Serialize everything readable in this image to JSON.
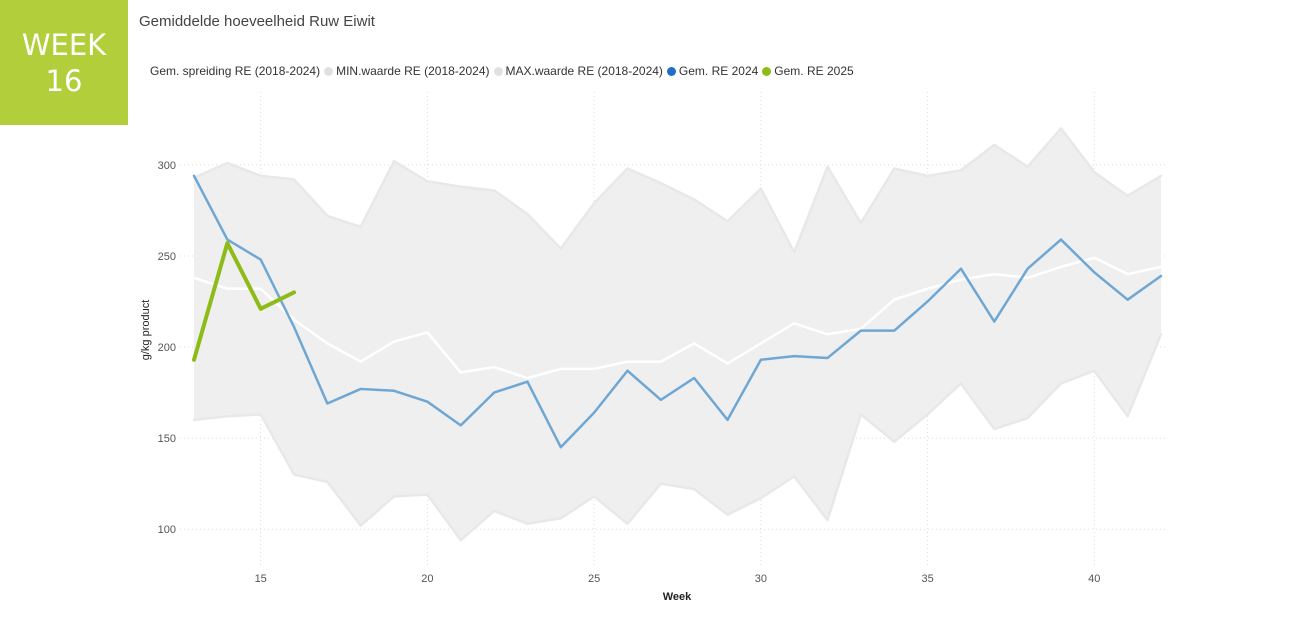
{
  "badge": {
    "line1": "WEEK",
    "line2": "16",
    "color": "#b2cf3b"
  },
  "chart_data": {
    "type": "line",
    "title": "Gemiddelde hoeveelheid Ruw Eiwit",
    "xlabel": "Week",
    "ylabel": "g/kg product",
    "xlim": [
      13,
      42
    ],
    "ylim": [
      82,
      340
    ],
    "xticks": [
      15,
      20,
      25,
      30,
      35,
      40
    ],
    "yticks": [
      100,
      150,
      200,
      250,
      300
    ],
    "grid": true,
    "legend_position": "top-left",
    "legend": [
      {
        "label": "Gem. spreiding RE (2018-2024)",
        "color": null
      },
      {
        "label": "MIN.waarde RE (2018-2024)",
        "color": "#e0e0e0"
      },
      {
        "label": "MAX.waarde RE (2018-2024)",
        "color": "#e0e0e0"
      },
      {
        "label": "Gem. RE 2024",
        "color": "#1f6fc5"
      },
      {
        "label": "Gem. RE 2025",
        "color": "#8dbb17"
      }
    ],
    "x": [
      13,
      14,
      15,
      16,
      17,
      18,
      19,
      20,
      21,
      22,
      23,
      24,
      25,
      26,
      27,
      28,
      29,
      30,
      31,
      32,
      33,
      34,
      35,
      36,
      37,
      38,
      39,
      40,
      41,
      42
    ],
    "series": [
      {
        "name": "MIN.waarde RE (2018-2024)",
        "color": "#e8e8e8",
        "values": [
          160,
          162,
          163,
          130,
          126,
          102,
          118,
          119,
          94,
          110,
          103,
          106,
          118,
          103,
          125,
          122,
          108,
          117,
          129,
          105,
          163,
          148,
          163,
          180,
          155,
          161,
          180,
          187,
          162,
          207
        ]
      },
      {
        "name": "MAX.waarde RE (2018-2024)",
        "color": "#e8e8e8",
        "values": [
          293,
          301,
          294,
          292,
          272,
          266,
          302,
          291,
          288,
          286,
          273,
          254,
          279,
          298,
          290,
          281,
          269,
          287,
          252,
          299,
          268,
          298,
          294,
          297,
          311,
          299,
          320,
          296,
          283,
          294
        ]
      },
      {
        "name": "Gem. spreiding RE (2018-2024)",
        "color": "#ffffff",
        "values": [
          238,
          232,
          232,
          215,
          202,
          192,
          203,
          208,
          186,
          189,
          183,
          188,
          188,
          192,
          192,
          202,
          191,
          202,
          213,
          207,
          210,
          226,
          232,
          237,
          240,
          238,
          244,
          249,
          240,
          244
        ]
      },
      {
        "name": "Gem. RE 2024",
        "color": "#6fa7d4",
        "values": [
          294,
          259,
          248,
          211,
          169,
          177,
          176,
          170,
          157,
          175,
          181,
          145,
          164,
          187,
          171,
          183,
          160,
          193,
          195,
          194,
          209,
          209,
          225,
          243,
          214,
          243,
          259,
          241,
          226,
          239
        ]
      },
      {
        "name": "Gem. RE 2025",
        "color": "#8dbb17",
        "x": [
          13,
          14,
          15,
          16
        ],
        "values": [
          193,
          257,
          221,
          230
        ]
      }
    ]
  }
}
